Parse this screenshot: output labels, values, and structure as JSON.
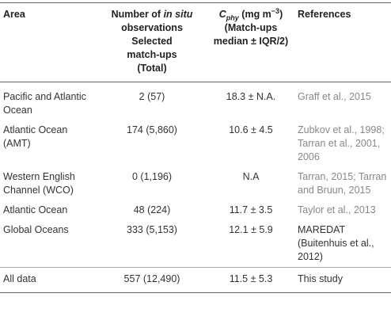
{
  "table": {
    "header": [
      "Area",
      [
        "Number of ",
        "in situ",
        "observations",
        "Selected",
        "match-ups",
        "(Total)"
      ],
      [
        "C",
        "phy",
        " (mg m",
        "−3",
        ")",
        "(Match-ups",
        "median ± IQR/2)"
      ],
      "References"
    ],
    "rows": [
      [
        "Pacific and Atlantic Ocean",
        "2 (57)",
        "18.3 ± N.A.",
        "Graff et al., 2015"
      ],
      [
        "Atlantic Ocean (AMT)",
        "174 (5,860)",
        "10.6 ± 4.5",
        "Zubkov et al., 1998; Tarran et al., 2001, 2006"
      ],
      [
        "Western English Channel (WCO)",
        "0 (1,196)",
        "N.A",
        "Tarran, 2015; Tarran and Bruun, 2015"
      ],
      [
        "Atlantic Ocean",
        "48 (224)",
        "11.7 ± 3.5",
        "Taylor et al., 2013"
      ],
      [
        "Global Oceans",
        "333 (5,153)",
        "12.1 ± 5.9",
        "MAREDAT (Buitenhuis et al., 2012)"
      ],
      [
        "All data",
        "557 (12,490)",
        "11.5 ± 5.3",
        "This study"
      ]
    ]
  }
}
